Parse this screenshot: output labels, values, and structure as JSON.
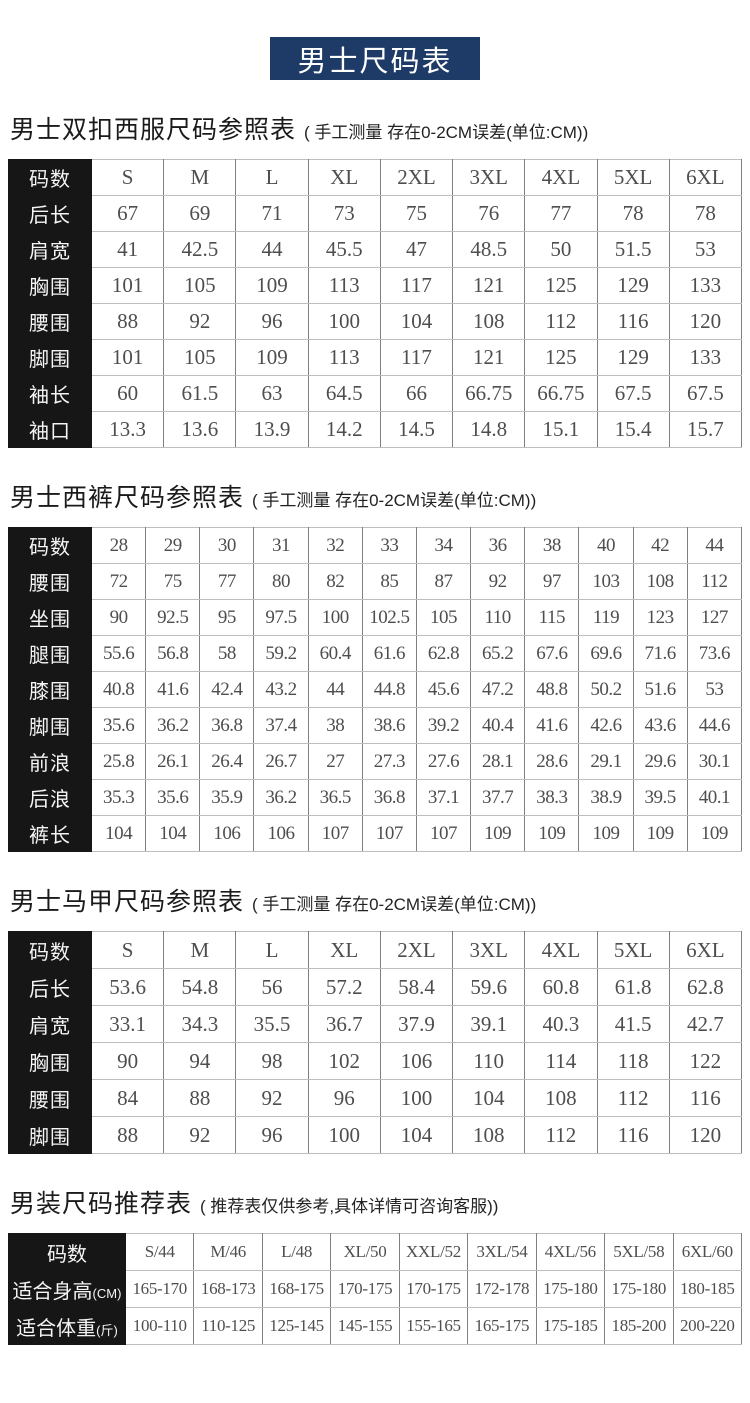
{
  "banner": {
    "title": "男士尺码表"
  },
  "theme": {
    "banner_bg": "#1e3a66",
    "banner_text": "#ffffff",
    "row_label_bg": "#161616",
    "row_label_text": "#f5f5f5",
    "value_text": "#4e4e4e",
    "page_bg": "#ffffff"
  },
  "sections": [
    {
      "title": "男士双扣西服尺码参照表",
      "subtitle": "( 手工测量 存在0-2CM误差(单位:CM))",
      "table": {
        "header_label": "码数",
        "columns": [
          "S",
          "M",
          "L",
          "XL",
          "2XL",
          "3XL",
          "4XL",
          "5XL",
          "6XL"
        ],
        "rows": [
          {
            "label": "后长",
            "values": [
              "67",
              "69",
              "71",
              "73",
              "75",
              "76",
              "77",
              "78",
              "78"
            ]
          },
          {
            "label": "肩宽",
            "values": [
              "41",
              "42.5",
              "44",
              "45.5",
              "47",
              "48.5",
              "50",
              "51.5",
              "53"
            ]
          },
          {
            "label": "胸围",
            "values": [
              "101",
              "105",
              "109",
              "113",
              "117",
              "121",
              "125",
              "129",
              "133"
            ]
          },
          {
            "label": "腰围",
            "values": [
              "88",
              "92",
              "96",
              "100",
              "104",
              "108",
              "112",
              "116",
              "120"
            ]
          },
          {
            "label": "脚围",
            "values": [
              "101",
              "105",
              "109",
              "113",
              "117",
              "121",
              "125",
              "129",
              "133"
            ]
          },
          {
            "label": "袖长",
            "values": [
              "60",
              "61.5",
              "63",
              "64.5",
              "66",
              "66.75",
              "66.75",
              "67.5",
              "67.5"
            ]
          },
          {
            "label": "袖口",
            "values": [
              "13.3",
              "13.6",
              "13.9",
              "14.2",
              "14.5",
              "14.8",
              "15.1",
              "15.4",
              "15.7"
            ]
          }
        ]
      }
    },
    {
      "title": "男士西裤尺码参照表",
      "subtitle": "( 手工测量 存在0-2CM误差(单位:CM))",
      "table": {
        "header_label": "码数",
        "columns": [
          "28",
          "29",
          "30",
          "31",
          "32",
          "33",
          "34",
          "36",
          "38",
          "40",
          "42",
          "44"
        ],
        "rows": [
          {
            "label": "腰围",
            "values": [
              "72",
              "75",
              "77",
              "80",
              "82",
              "85",
              "87",
              "92",
              "97",
              "103",
              "108",
              "112"
            ]
          },
          {
            "label": "坐围",
            "values": [
              "90",
              "92.5",
              "95",
              "97.5",
              "100",
              "102.5",
              "105",
              "110",
              "115",
              "119",
              "123",
              "127"
            ]
          },
          {
            "label": "腿围",
            "values": [
              "55.6",
              "56.8",
              "58",
              "59.2",
              "60.4",
              "61.6",
              "62.8",
              "65.2",
              "67.6",
              "69.6",
              "71.6",
              "73.6"
            ]
          },
          {
            "label": "膝围",
            "values": [
              "40.8",
              "41.6",
              "42.4",
              "43.2",
              "44",
              "44.8",
              "45.6",
              "47.2",
              "48.8",
              "50.2",
              "51.6",
              "53"
            ]
          },
          {
            "label": "脚围",
            "values": [
              "35.6",
              "36.2",
              "36.8",
              "37.4",
              "38",
              "38.6",
              "39.2",
              "40.4",
              "41.6",
              "42.6",
              "43.6",
              "44.6"
            ]
          },
          {
            "label": "前浪",
            "values": [
              "25.8",
              "26.1",
              "26.4",
              "26.7",
              "27",
              "27.3",
              "27.6",
              "28.1",
              "28.6",
              "29.1",
              "29.6",
              "30.1"
            ]
          },
          {
            "label": "后浪",
            "values": [
              "35.3",
              "35.6",
              "35.9",
              "36.2",
              "36.5",
              "36.8",
              "37.1",
              "37.7",
              "38.3",
              "38.9",
              "39.5",
              "40.1"
            ]
          },
          {
            "label": "裤长",
            "values": [
              "104",
              "104",
              "106",
              "106",
              "107",
              "107",
              "107",
              "109",
              "109",
              "109",
              "109",
              "109"
            ]
          }
        ]
      }
    },
    {
      "title": "男士马甲尺码参照表",
      "subtitle": "( 手工测量 存在0-2CM误差(单位:CM))",
      "table": {
        "header_label": "码数",
        "columns": [
          "S",
          "M",
          "L",
          "XL",
          "2XL",
          "3XL",
          "4XL",
          "5XL",
          "6XL"
        ],
        "rows": [
          {
            "label": "后长",
            "values": [
              "53.6",
              "54.8",
              "56",
              "57.2",
              "58.4",
              "59.6",
              "60.8",
              "61.8",
              "62.8"
            ]
          },
          {
            "label": "肩宽",
            "values": [
              "33.1",
              "34.3",
              "35.5",
              "36.7",
              "37.9",
              "39.1",
              "40.3",
              "41.5",
              "42.7"
            ]
          },
          {
            "label": "胸围",
            "values": [
              "90",
              "94",
              "98",
              "102",
              "106",
              "110",
              "114",
              "118",
              "122"
            ]
          },
          {
            "label": "腰围",
            "values": [
              "84",
              "88",
              "92",
              "96",
              "100",
              "104",
              "108",
              "112",
              "116"
            ]
          },
          {
            "label": "脚围",
            "values": [
              "88",
              "92",
              "96",
              "100",
              "104",
              "108",
              "112",
              "116",
              "120"
            ]
          }
        ]
      }
    },
    {
      "title": "男装尺码推荐表",
      "subtitle": "( 推荐表仅供参考,具体详情可咨询客服))",
      "table": {
        "header_label": "码数",
        "columns": [
          "S/44",
          "M/46",
          "L/48",
          "XL/50",
          "XXL/52",
          "3XL/54",
          "4XL/56",
          "5XL/58",
          "6XL/60"
        ],
        "rows": [
          {
            "label": "适合身高",
            "label_paren": "(CM)",
            "values": [
              "165-170",
              "168-173",
              "168-175",
              "170-175",
              "170-175",
              "172-178",
              "175-180",
              "175-180",
              "180-185"
            ]
          },
          {
            "label": "适合体重",
            "label_paren": "(斤)",
            "values": [
              "100-110",
              "110-125",
              "125-145",
              "145-155",
              "155-165",
              "165-175",
              "175-185",
              "185-200",
              "200-220"
            ]
          }
        ]
      }
    }
  ]
}
